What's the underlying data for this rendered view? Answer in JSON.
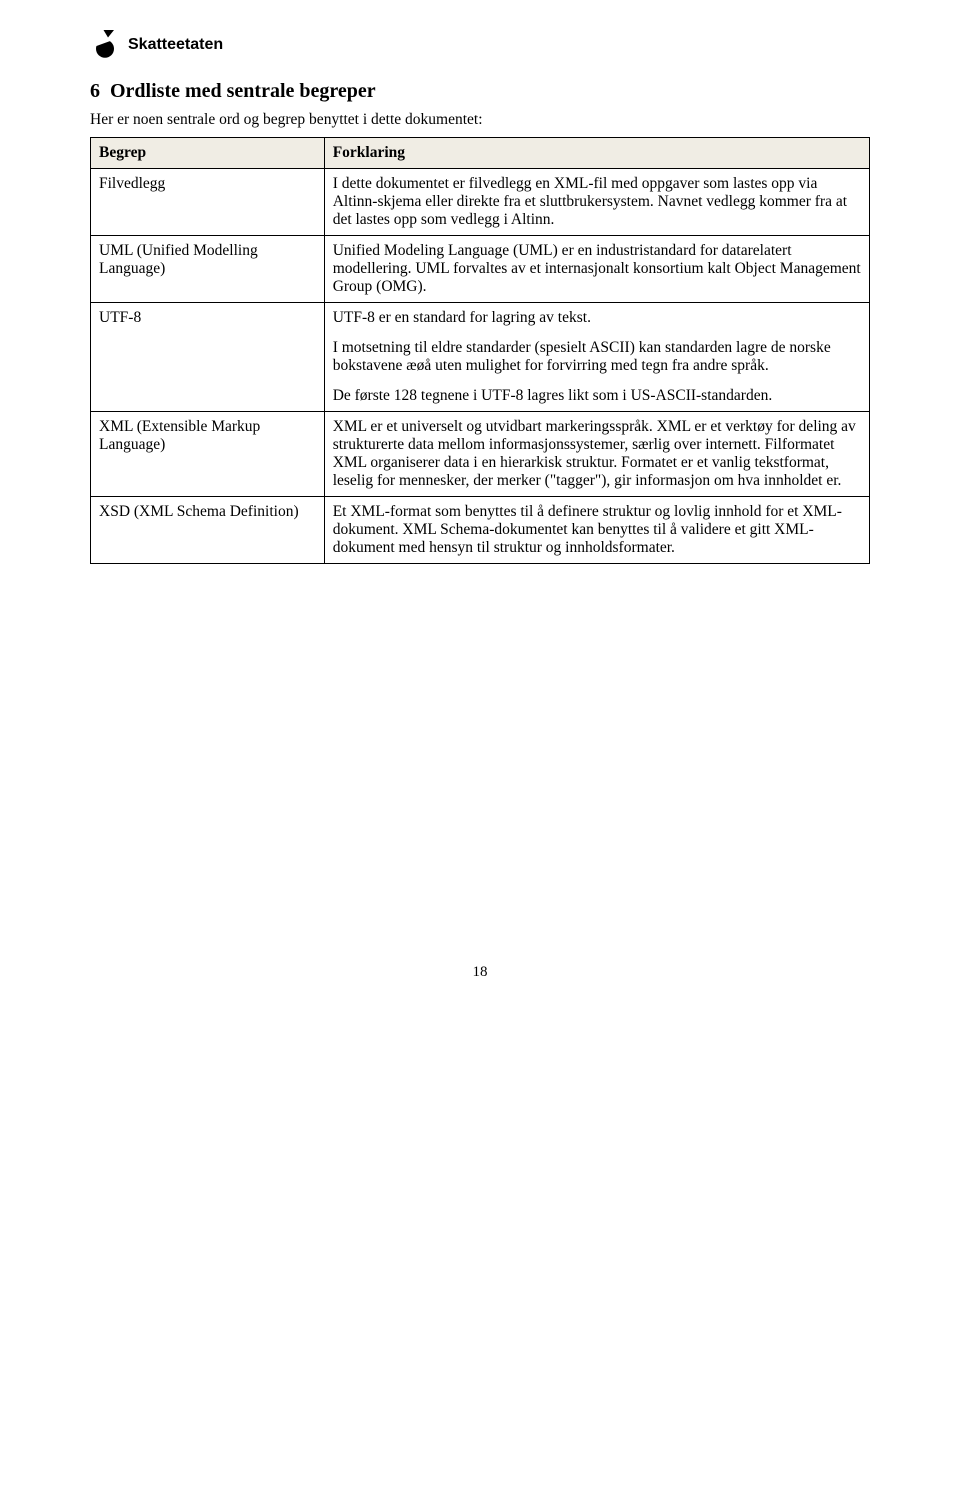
{
  "header": {
    "brand": "Skatteetaten"
  },
  "section": {
    "number": "6",
    "title": "Ordliste med sentrale begreper",
    "intro": "Her er noen sentrale ord og begrep benyttet i dette dokumentet:"
  },
  "table": {
    "cols": [
      "Begrep",
      "Forklaring"
    ],
    "rows": [
      {
        "term": "Filvedlegg",
        "defs": [
          "I dette dokumentet er filvedlegg en XML-fil med oppgaver som lastes opp via Altinn-skjema eller direkte fra et sluttbrukersystem. Navnet vedlegg kommer fra at det lastes opp som vedlegg i Altinn."
        ]
      },
      {
        "term": "UML (Unified Modelling Language)",
        "defs": [
          "Unified Modeling Language (UML) er en industristandard for datarelatert modellering. UML forvaltes av et internasjonalt konsortium kalt Object Management Group (OMG)."
        ]
      },
      {
        "term": "UTF-8",
        "defs": [
          "UTF-8 er en standard for lagring av tekst.",
          "I motsetning til eldre standarder (spesielt ASCII) kan standarden lagre de norske bokstavene æøå uten mulighet for forvirring med tegn fra andre språk.",
          "De første 128 tegnene i UTF-8 lagres likt som i US-ASCII-standarden."
        ]
      },
      {
        "term": "XML (Extensible Markup Language)",
        "defs": [
          "XML er et universelt og utvidbart markeringsspråk. XML er et verktøy for deling av strukturerte data mellom informasjonssystemer, særlig over internett. Filformatet XML organiserer data i en hierarkisk struktur. Formatet er et vanlig tekstformat, leselig for mennesker, der merker (\"tagger\"), gir informasjon om hva innholdet er."
        ]
      },
      {
        "term": "XSD (XML Schema Definition)",
        "defs": [
          "Et XML-format som benyttes til å definere struktur og lovlig innhold for et XML-dokument. XML Schema-dokumentet kan benyttes til å validere et gitt XML-dokument med hensyn til struktur og innholdsformater."
        ]
      }
    ]
  },
  "pageNumber": "18"
}
